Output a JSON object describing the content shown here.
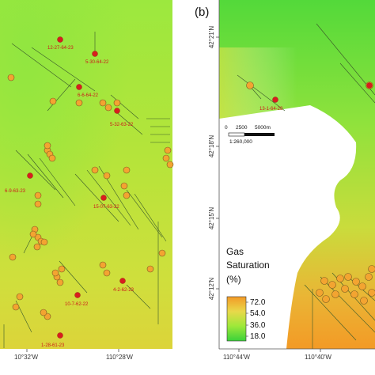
{
  "panel_b_letter": "(b)",
  "panel_a": {
    "well_labels": [
      "12-27-64-23",
      "5-30-64-22",
      "6-6-64-22",
      "5-32-63-22",
      "6-9-63-23",
      "15-07-63-22",
      "4-2-62-23",
      "10-7-62-22",
      "1-28-61-23"
    ],
    "lon_ticks": [
      "10°32'W",
      "110°28'W"
    ]
  },
  "panel_b": {
    "well_label": "13-1-64-28",
    "lat_ticks": [
      "42°21'N",
      "42°18'N",
      "42°15'N",
      "42°12'N"
    ],
    "lon_ticks": [
      "110°44'W",
      "110°40'W"
    ],
    "scale_bar": {
      "labels": [
        "0",
        "2500",
        "5000m"
      ],
      "ratio": "1:260,000"
    },
    "legend": {
      "title": [
        "Gas",
        "Saturation",
        "(%)"
      ],
      "values": [
        "72.0",
        "54.0",
        "36.0",
        "18.0"
      ],
      "colors": [
        "#f39a26",
        "#e9d84a",
        "#9fe83a",
        "#3ad13a"
      ]
    }
  }
}
